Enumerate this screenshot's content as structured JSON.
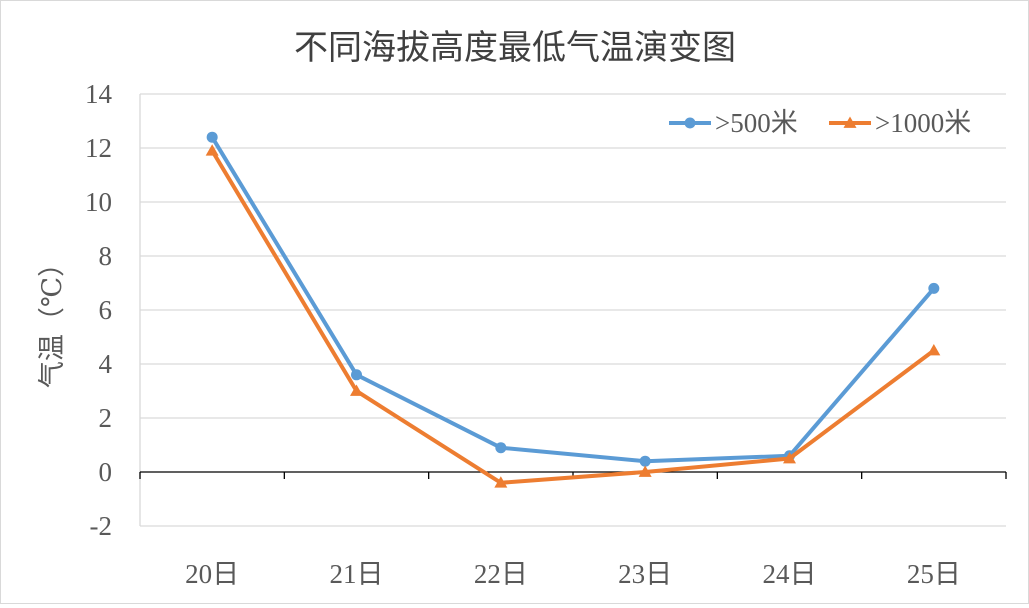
{
  "chart_data": {
    "type": "line",
    "title": "不同海拔高度最低气温演变图",
    "xlabel": "",
    "ylabel": "气温（℃）",
    "categories": [
      "20日",
      "21日",
      "22日",
      "23日",
      "24日",
      "25日"
    ],
    "ylim": [
      -2,
      14
    ],
    "yticks": [
      -2,
      0,
      2,
      4,
      6,
      8,
      10,
      12,
      14
    ],
    "grid": true,
    "legend_position": "top-right",
    "series": [
      {
        "name": ">500米",
        "marker": "circle",
        "color": "#5b9bd5",
        "values": [
          12.4,
          3.6,
          0.9,
          0.4,
          0.6,
          6.8
        ]
      },
      {
        "name": ">1000米",
        "marker": "triangle",
        "color": "#ed7d31",
        "values": [
          11.9,
          3.0,
          -0.4,
          0.0,
          0.5,
          4.5
        ]
      }
    ]
  }
}
